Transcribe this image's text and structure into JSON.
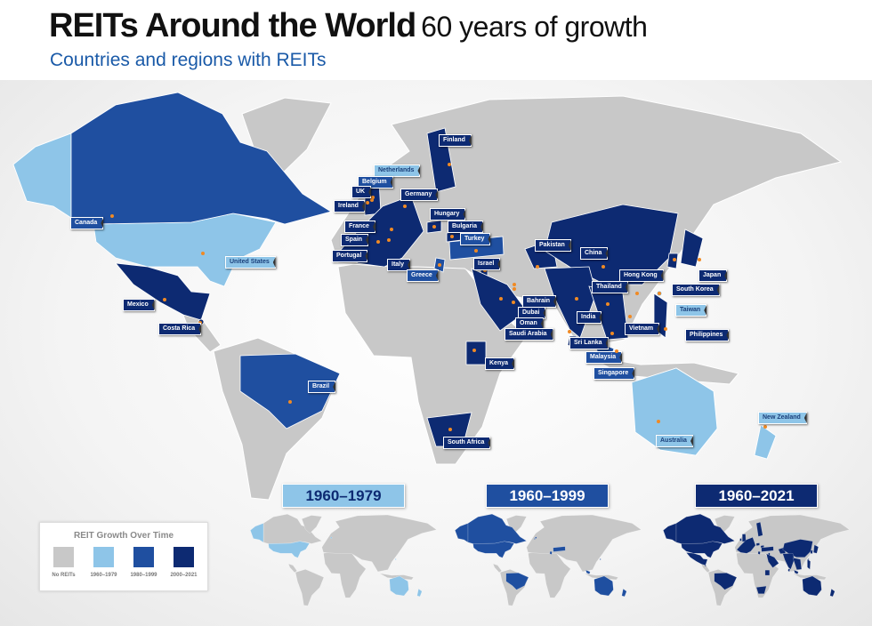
{
  "header": {
    "title": "REITs Around the World",
    "title_suffix": "60 years of growth",
    "subtitle": "Countries and regions with REITs"
  },
  "colors": {
    "no_reits": "#c8c8c8",
    "period_1960_1979": "#8ec5e8",
    "period_1980_1999": "#1f4fa0",
    "period_2000_2021": "#0d2a72",
    "marker": "#f08a24",
    "subtitle": "#1a5aa8"
  },
  "countries": [
    {
      "name": "Finland",
      "period": "2000–2021"
    },
    {
      "name": "Netherlands",
      "period": "1960–1979"
    },
    {
      "name": "Belgium",
      "period": "1980–1999"
    },
    {
      "name": "UK",
      "period": "2000–2021"
    },
    {
      "name": "Germany",
      "period": "2000–2021"
    },
    {
      "name": "Ireland",
      "period": "2000–2021"
    },
    {
      "name": "Hungary",
      "period": "2000–2021"
    },
    {
      "name": "France",
      "period": "2000–2021"
    },
    {
      "name": "Bulgaria",
      "period": "2000–2021"
    },
    {
      "name": "Spain",
      "period": "2000–2021"
    },
    {
      "name": "Turkey",
      "period": "1980–1999"
    },
    {
      "name": "Portugal",
      "period": "2000–2021"
    },
    {
      "name": "Italy",
      "period": "2000–2021"
    },
    {
      "name": "Israel",
      "period": "2000–2021"
    },
    {
      "name": "Greece",
      "period": "1980–1999"
    },
    {
      "name": "Pakistan",
      "period": "2000–2021"
    },
    {
      "name": "China",
      "period": "2000–2021"
    },
    {
      "name": "Hong Kong",
      "period": "2000–2021"
    },
    {
      "name": "Thailand",
      "period": "2000–2021"
    },
    {
      "name": "Japan",
      "period": "2000–2021"
    },
    {
      "name": "South Korea",
      "period": "2000–2021"
    },
    {
      "name": "Bahrain",
      "period": "2000–2021"
    },
    {
      "name": "Taiwan",
      "period": "1960–1979"
    },
    {
      "name": "Dubai",
      "period": "2000–2021"
    },
    {
      "name": "India",
      "period": "2000–2021"
    },
    {
      "name": "Oman",
      "period": "2000–2021"
    },
    {
      "name": "Vietnam",
      "period": "2000–2021"
    },
    {
      "name": "Saudi Arabia",
      "period": "2000–2021"
    },
    {
      "name": "Philippines",
      "period": "2000–2021"
    },
    {
      "name": "Sri Lanka",
      "period": "2000–2021"
    },
    {
      "name": "Malaysia",
      "period": "1980–1999"
    },
    {
      "name": "Kenya",
      "period": "2000–2021"
    },
    {
      "name": "Singapore",
      "period": "1980–1999"
    },
    {
      "name": "Brazil",
      "period": "1980–1999"
    },
    {
      "name": "South Africa",
      "period": "2000–2021"
    },
    {
      "name": "Australia",
      "period": "1960–1979"
    },
    {
      "name": "New Zealand",
      "period": "1960–1979"
    },
    {
      "name": "Canada",
      "period": "1980–1999"
    },
    {
      "name": "United States",
      "period": "1960–1979"
    },
    {
      "name": "Mexico",
      "period": "2000–2021"
    },
    {
      "name": "Costa Rica",
      "period": "2000–2021"
    }
  ],
  "insets": [
    {
      "label": "1960–1979"
    },
    {
      "label": "1960–1999"
    },
    {
      "label": "1960–2021"
    }
  ],
  "legend": {
    "title": "REIT Growth Over Time",
    "items": [
      {
        "label": "No REITs"
      },
      {
        "label": "1960–1979"
      },
      {
        "label": "1980–1999"
      },
      {
        "label": "2000–2021"
      }
    ]
  }
}
